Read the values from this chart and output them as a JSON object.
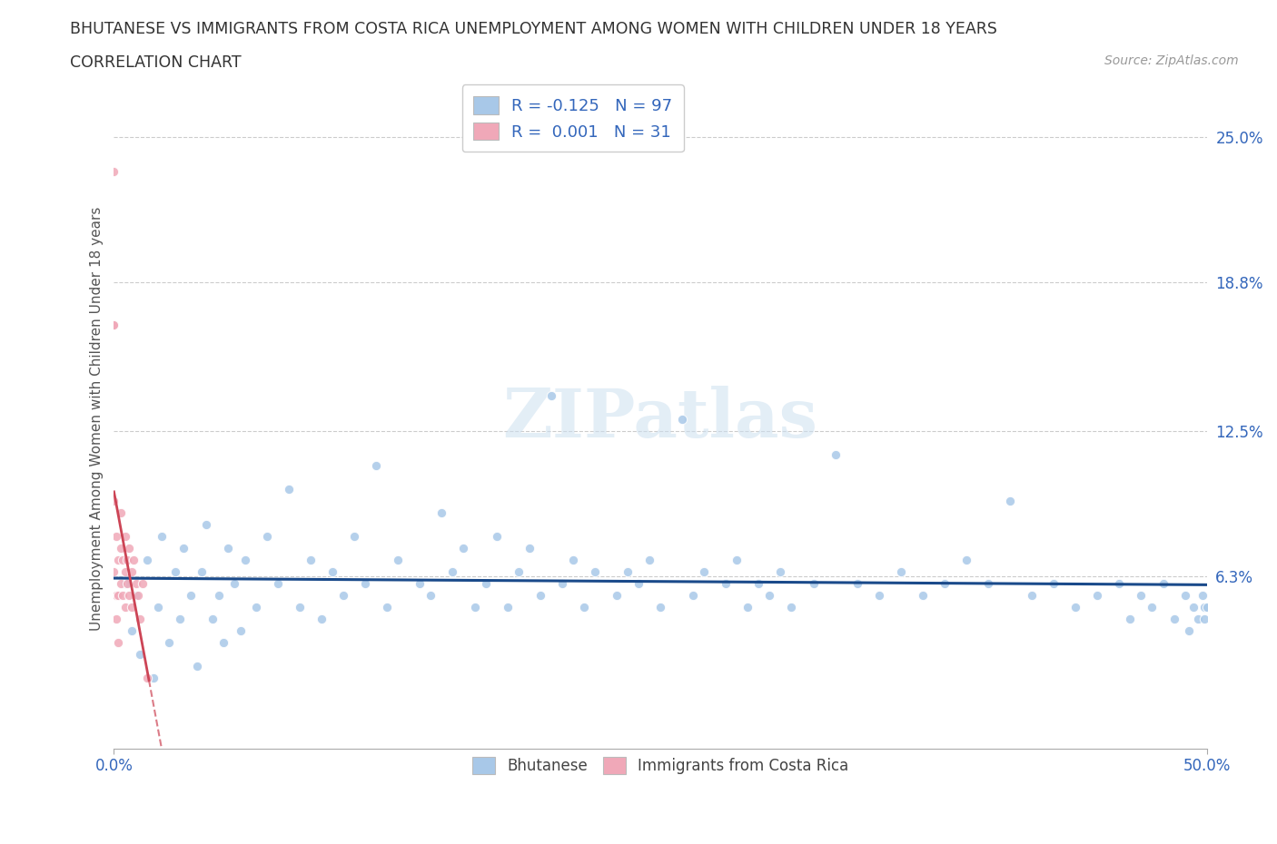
{
  "title_line1": "BHUTANESE VS IMMIGRANTS FROM COSTA RICA UNEMPLOYMENT AMONG WOMEN WITH CHILDREN UNDER 18 YEARS",
  "title_line2": "CORRELATION CHART",
  "source": "Source: ZipAtlas.com",
  "ylabel": "Unemployment Among Women with Children Under 18 years",
  "xlim": [
    0.0,
    0.5
  ],
  "ylim": [
    -0.01,
    0.27
  ],
  "ytick_vals": [
    0.0,
    0.063,
    0.125,
    0.188,
    0.25
  ],
  "ytick_labels": [
    "",
    "6.3%",
    "12.5%",
    "18.8%",
    "25.0%"
  ],
  "xtick_vals": [
    0.0,
    0.5
  ],
  "xtick_labels": [
    "0.0%",
    "50.0%"
  ],
  "watermark": "ZIPatlas",
  "bhutanese_R": -0.125,
  "bhutanese_N": 97,
  "costarica_R": 0.001,
  "costarica_N": 31,
  "blue_color": "#a8c8e8",
  "pink_color": "#f0a8b8",
  "blue_line_color": "#1a4a8a",
  "pink_line_color": "#cc4455",
  "axis_label_color": "#3366bb",
  "legend_R_color": "#3366bb",
  "background_color": "#ffffff",
  "blue_x": [
    0.005,
    0.008,
    0.01,
    0.012,
    0.015,
    0.018,
    0.02,
    0.022,
    0.025,
    0.028,
    0.03,
    0.032,
    0.035,
    0.038,
    0.04,
    0.042,
    0.045,
    0.048,
    0.05,
    0.052,
    0.055,
    0.058,
    0.06,
    0.065,
    0.07,
    0.075,
    0.08,
    0.085,
    0.09,
    0.095,
    0.1,
    0.105,
    0.11,
    0.115,
    0.12,
    0.125,
    0.13,
    0.14,
    0.145,
    0.15,
    0.155,
    0.16,
    0.165,
    0.17,
    0.175,
    0.18,
    0.185,
    0.19,
    0.195,
    0.2,
    0.205,
    0.21,
    0.215,
    0.22,
    0.23,
    0.235,
    0.24,
    0.245,
    0.25,
    0.26,
    0.265,
    0.27,
    0.28,
    0.285,
    0.29,
    0.295,
    0.3,
    0.305,
    0.31,
    0.32,
    0.33,
    0.34,
    0.35,
    0.36,
    0.37,
    0.38,
    0.39,
    0.4,
    0.41,
    0.42,
    0.43,
    0.44,
    0.45,
    0.46,
    0.465,
    0.47,
    0.475,
    0.48,
    0.485,
    0.49,
    0.492,
    0.494,
    0.496,
    0.498,
    0.499,
    0.499,
    0.5
  ],
  "blue_y": [
    0.06,
    0.04,
    0.055,
    0.03,
    0.07,
    0.02,
    0.05,
    0.08,
    0.035,
    0.065,
    0.045,
    0.075,
    0.055,
    0.025,
    0.065,
    0.085,
    0.045,
    0.055,
    0.035,
    0.075,
    0.06,
    0.04,
    0.07,
    0.05,
    0.08,
    0.06,
    0.1,
    0.05,
    0.07,
    0.045,
    0.065,
    0.055,
    0.08,
    0.06,
    0.11,
    0.05,
    0.07,
    0.06,
    0.055,
    0.09,
    0.065,
    0.075,
    0.05,
    0.06,
    0.08,
    0.05,
    0.065,
    0.075,
    0.055,
    0.14,
    0.06,
    0.07,
    0.05,
    0.065,
    0.055,
    0.065,
    0.06,
    0.07,
    0.05,
    0.13,
    0.055,
    0.065,
    0.06,
    0.07,
    0.05,
    0.06,
    0.055,
    0.065,
    0.05,
    0.06,
    0.115,
    0.06,
    0.055,
    0.065,
    0.055,
    0.06,
    0.07,
    0.06,
    0.095,
    0.055,
    0.06,
    0.05,
    0.055,
    0.06,
    0.045,
    0.055,
    0.05,
    0.06,
    0.045,
    0.055,
    0.04,
    0.05,
    0.045,
    0.055,
    0.05,
    0.045,
    0.05
  ],
  "pink_x": [
    0.0,
    0.0,
    0.0,
    0.0,
    0.0,
    0.001,
    0.001,
    0.001,
    0.002,
    0.002,
    0.002,
    0.003,
    0.003,
    0.003,
    0.004,
    0.004,
    0.005,
    0.005,
    0.005,
    0.006,
    0.006,
    0.007,
    0.007,
    0.008,
    0.008,
    0.009,
    0.01,
    0.011,
    0.012,
    0.013,
    0.015
  ],
  "pink_y": [
    0.235,
    0.17,
    0.17,
    0.095,
    0.065,
    0.08,
    0.055,
    0.045,
    0.07,
    0.055,
    0.035,
    0.075,
    0.06,
    0.09,
    0.07,
    0.055,
    0.065,
    0.08,
    0.05,
    0.07,
    0.06,
    0.075,
    0.055,
    0.065,
    0.05,
    0.07,
    0.06,
    0.055,
    0.045,
    0.06,
    0.02
  ]
}
